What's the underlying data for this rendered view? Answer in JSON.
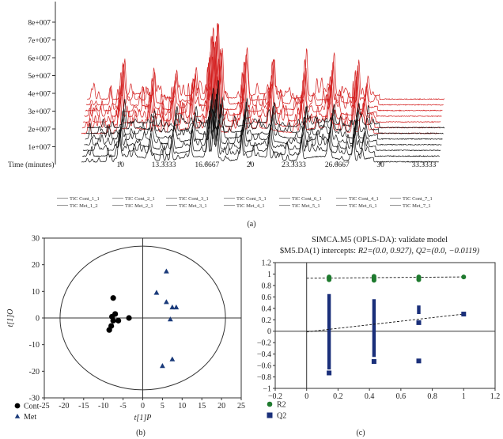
{
  "panel_labels": {
    "a": "(a)",
    "b": "(b)",
    "c": "(c)"
  },
  "chart_data": [
    {
      "type": "line",
      "panel": "a",
      "xlabel": "Time (minutes)",
      "xticks": [
        "10",
        "13.3333",
        "16.6667",
        "20",
        "23.3333",
        "26.6667",
        "30",
        "33.3333"
      ],
      "xlim": [
        5.0,
        34.8
      ],
      "yticks": [
        "1e+007",
        "2e+007",
        "3e+007",
        "4e+007",
        "5e+007",
        "6e+007",
        "7e+007",
        "8e+007"
      ],
      "ylim": [
        0,
        8.8
      ],
      "y_unit_note": "values in units of 1e+007",
      "colors": {
        "Cont": "#d42020",
        "Met": "#111111"
      },
      "legend": [
        "TIC Cont_1_1",
        "TIC Cont_2_1",
        "TIC Cont_3_1",
        "TIC Cont_5_1",
        "TIC Cont_6_1",
        "TIC Cont_4_1",
        "TIC Cont_7_1",
        "TIC Met_1_2",
        "TIC Met_2_1",
        "TIC Met_3_1",
        "TIC Met_4_1",
        "TIC Met_5_1",
        "TIC Met_6_1",
        "TIC Met_7_1"
      ],
      "prominent_peaks_approx": [
        {
          "x": 9.9,
          "y": 5.0
        },
        {
          "x": 12.2,
          "y": 3.9
        },
        {
          "x": 13.9,
          "y": 4.2
        },
        {
          "x": 15.4,
          "y": 4.1
        },
        {
          "x": 16.7,
          "y": 7.3
        },
        {
          "x": 17.1,
          "y": 8.5
        },
        {
          "x": 17.4,
          "y": 6.2
        },
        {
          "x": 19.3,
          "y": 5.9
        },
        {
          "x": 21.4,
          "y": 5.0
        },
        {
          "x": 23.9,
          "y": 4.8
        },
        {
          "x": 26.0,
          "y": 4.6
        },
        {
          "x": 27.9,
          "y": 5.2
        },
        {
          "x": 28.6,
          "y": 3.5
        }
      ]
    },
    {
      "type": "scatter",
      "panel": "b",
      "xlabel": "t[1]P",
      "ylabel": "t[1]O",
      "xlim": [
        -25,
        25
      ],
      "ylim": [
        -30,
        30
      ],
      "xticks": [
        "-25",
        "-20",
        "-15",
        "-10",
        "-5",
        "0",
        "5",
        "10",
        "15",
        "20",
        "25"
      ],
      "yticks": [
        "30",
        "20",
        "10",
        "0",
        "-10",
        "-20",
        "-30"
      ],
      "ellipse": {
        "rx": 21,
        "ry": 27
      },
      "series": [
        {
          "name": "Cont",
          "color": "#000000",
          "marker": "circle",
          "points": [
            [
              -7.5,
              7.5
            ],
            [
              -7.0,
              1.5
            ],
            [
              -7.8,
              0.5
            ],
            [
              -7.5,
              -1.0
            ],
            [
              -6.2,
              -1.0
            ],
            [
              -3.5,
              0.0
            ],
            [
              -8.0,
              -3.0
            ],
            [
              -8.5,
              -4.5
            ]
          ]
        },
        {
          "name": "Met",
          "color": "#1a3a7a",
          "marker": "triangle",
          "points": [
            [
              6.0,
              17.5
            ],
            [
              3.5,
              9.5
            ],
            [
              6.0,
              6.0
            ],
            [
              7.5,
              4.0
            ],
            [
              8.5,
              4.0
            ],
            [
              7.0,
              -0.5
            ],
            [
              7.5,
              -15.5
            ],
            [
              5.0,
              -18.0
            ]
          ]
        }
      ],
      "legend": [
        "Cont",
        "Met"
      ]
    },
    {
      "type": "scatter",
      "panel": "c",
      "title": "SIMCA.M5 (OPLS-DA): validate model",
      "subtitle_prefix": "$M5.DA(1) intercepts:",
      "r2_label": "R2=(0.0, 0.927),",
      "q2_label": "Q2=(0.0, −0.0119)",
      "xlim": [
        -0.2,
        1.2
      ],
      "ylim": [
        -1.0,
        1.2
      ],
      "xticks": [
        "−0.2",
        "0",
        "0.2",
        "0.4",
        "0.6",
        "0.8",
        "1",
        "1.2"
      ],
      "yticks": [
        "1.2",
        "1",
        "0.8",
        "0.6",
        "0.4",
        "0.2",
        "0",
        "−0.2",
        "−0.4",
        "−0.6",
        "−0.8",
        "−1"
      ],
      "series": [
        {
          "name": "R2",
          "color": "#1e7a2e",
          "marker": "circle",
          "points": [
            [
              0.143,
              0.9
            ],
            [
              0.143,
              0.93
            ],
            [
              0.143,
              0.95
            ],
            [
              0.429,
              0.89
            ],
            [
              0.429,
              0.91
            ],
            [
              0.429,
              0.93
            ],
            [
              0.429,
              0.96
            ],
            [
              0.714,
              0.9
            ],
            [
              0.714,
              0.93
            ],
            [
              0.714,
              0.95
            ],
            [
              1.0,
              0.95
            ]
          ],
          "regression": [
            [
              0.0,
              0.927
            ],
            [
              1.0,
              0.95
            ]
          ]
        },
        {
          "name": "Q2",
          "color": "#1a2f7a",
          "marker": "square",
          "points": [
            [
              0.143,
              -0.73
            ],
            [
              0.429,
              -0.53
            ],
            [
              0.714,
              -0.52
            ],
            [
              0.714,
              0.15
            ],
            [
              1.0,
              0.3
            ]
          ],
          "bars": [
            [
              0.143,
              -0.67,
              0.65
            ],
            [
              0.429,
              -0.45,
              0.56
            ],
            [
              0.714,
              0.3,
              0.45
            ]
          ],
          "regression": [
            [
              0.0,
              -0.0119
            ],
            [
              1.0,
              0.3
            ]
          ]
        }
      ],
      "legend": [
        "R2",
        "Q2"
      ]
    }
  ]
}
